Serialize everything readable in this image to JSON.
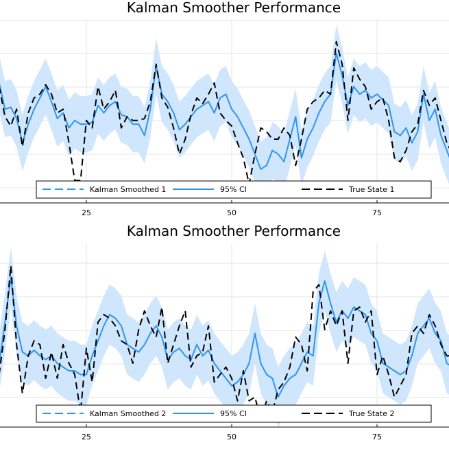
{
  "chart_data": [
    {
      "type": "line",
      "title": "Kalman Smoother Performance",
      "xlabel": "",
      "ylabel": "",
      "xlim": [
        10,
        88
      ],
      "ylim": [
        -2.2,
        2.7
      ],
      "xticks": [
        25,
        50,
        75
      ],
      "grid": true,
      "legend_placement": "bottom",
      "x": [
        10,
        11,
        12,
        13,
        14,
        15,
        16,
        17,
        18,
        19,
        20,
        21,
        22,
        23,
        24,
        25,
        26,
        27,
        28,
        29,
        30,
        31,
        32,
        33,
        34,
        35,
        36,
        37,
        38,
        39,
        40,
        41,
        42,
        43,
        44,
        45,
        46,
        47,
        48,
        49,
        50,
        51,
        52,
        53,
        54,
        55,
        56,
        57,
        58,
        59,
        60,
        61,
        62,
        63,
        64,
        65,
        66,
        67,
        68,
        69,
        70,
        71,
        72,
        73,
        74,
        75,
        76,
        77,
        78,
        79,
        80,
        81,
        82,
        83,
        84,
        85,
        86,
        87,
        88
      ],
      "series": [
        {
          "name": "Kalman Smoothed 1",
          "values": [
            1.0,
            0.3,
            0.35,
            0.05,
            -0.6,
            -0.1,
            0.3,
            0.6,
            0.9,
            0.5,
            0.05,
            0.2,
            -0.2,
            0.0,
            -0.1,
            -0.1,
            -0.05,
            0.4,
            0.2,
            0.4,
            0.5,
            0.15,
            0.1,
            -0.1,
            -0.1,
            -0.4,
            0.3,
            1.45,
            0.7,
            0.5,
            0.2,
            -0.25,
            -0.1,
            0.1,
            0.3,
            0.4,
            0.5,
            0.2,
            0.6,
            0.7,
            0.3,
            0.1,
            -0.2,
            -0.5,
            -0.9,
            -1.3,
            -1.2,
            -0.8,
            -0.9,
            -1.1,
            -0.5,
            0.1,
            -1.0,
            -0.5,
            -0.2,
            0.2,
            0.5,
            0.7,
            1.8,
            1.2,
            0.4,
            0.9,
            0.7,
            0.8,
            0.6,
            0.7,
            0.55,
            0.4,
            -0.3,
            -0.4,
            -0.2,
            -0.6,
            -0.3,
            0.7,
            0.0,
            0.3,
            -0.4,
            -0.8,
            -1.2
          ]
        },
        {
          "name": "True State 1",
          "values": [
            0.9,
            0.1,
            -0.15,
            0.3,
            -0.7,
            0.2,
            0.6,
            0.7,
            0.95,
            0.7,
            0.2,
            0.3,
            -0.6,
            -1.6,
            -1.6,
            0.0,
            -0.2,
            0.9,
            0.3,
            0.5,
            0.8,
            -0.2,
            0.1,
            0.0,
            0.0,
            0.05,
            0.5,
            1.5,
            0.6,
            0.35,
            -0.2,
            -0.9,
            -0.5,
            0.15,
            0.6,
            0.45,
            0.7,
            1.0,
            0.2,
            0.0,
            -0.15,
            -0.6,
            -1.0,
            -1.7,
            -0.9,
            -0.2,
            -0.3,
            -0.5,
            -0.5,
            -0.2,
            -0.4,
            -1.2,
            -0.5,
            0.3,
            0.5,
            0.6,
            0.8,
            0.7,
            2.1,
            1.5,
            0.0,
            1.4,
            1.1,
            0.9,
            0.3,
            0.5,
            0.6,
            0.0,
            -1.0,
            -1.1,
            -0.8,
            -0.3,
            -0.1,
            0.8,
            0.4,
            0.6,
            0.0,
            -0.6,
            -0.9
          ]
        }
      ],
      "ci_label": "95% CI",
      "ci_halfwidth": 0.75
    },
    {
      "type": "line",
      "title": "Kalman Smoother Performance",
      "xlabel": "",
      "ylabel": "",
      "xlim": [
        10,
        88
      ],
      "ylim": [
        -2.2,
        2.7
      ],
      "xticks": [
        25,
        50,
        75
      ],
      "grid": true,
      "legend_placement": "bottom",
      "x": [
        10,
        11,
        12,
        13,
        14,
        15,
        16,
        17,
        18,
        19,
        20,
        21,
        22,
        23,
        24,
        25,
        26,
        27,
        28,
        29,
        30,
        31,
        32,
        33,
        34,
        35,
        36,
        37,
        38,
        39,
        40,
        41,
        42,
        43,
        44,
        45,
        46,
        47,
        48,
        49,
        50,
        51,
        52,
        53,
        54,
        55,
        56,
        57,
        58,
        59,
        60,
        61,
        62,
        63,
        64,
        65,
        66,
        67,
        68,
        69,
        70,
        71,
        72,
        73,
        74,
        75,
        76,
        77,
        78,
        79,
        80,
        81,
        82,
        83,
        84,
        85,
        86,
        87,
        88
      ],
      "series": [
        {
          "name": "Kalman Smoothed 2",
          "values": [
            -0.5,
            0.6,
            1.8,
            0.5,
            -0.2,
            -0.3,
            -0.15,
            -0.3,
            -0.4,
            -0.3,
            -0.5,
            -0.6,
            -0.7,
            -0.7,
            -0.8,
            -0.8,
            -0.3,
            0.1,
            0.5,
            0.8,
            0.7,
            0.5,
            0.0,
            -0.1,
            -0.2,
            0.0,
            0.3,
            0.5,
            0.2,
            -0.4,
            -0.2,
            -0.1,
            -0.3,
            -0.4,
            0.0,
            -0.3,
            -0.15,
            -0.5,
            -0.7,
            -0.9,
            -1.1,
            -1.0,
            -0.8,
            -0.5,
            0.3,
            -0.5,
            -0.8,
            -0.9,
            -1.4,
            -1.1,
            -0.9,
            -0.8,
            -0.5,
            -0.2,
            -0.3,
            1.1,
            1.7,
            1.1,
            0.6,
            0.9,
            0.7,
            1.0,
            0.9,
            0.8,
            0.3,
            0.1,
            -0.5,
            -0.6,
            -0.7,
            -0.8,
            -0.7,
            -0.3,
            0.3,
            0.5,
            0.7,
            0.3,
            0.1,
            -0.5,
            -0.6
          ]
        },
        {
          "name": "True State 2",
          "values": [
            -0.8,
            0.4,
            2.1,
            0.0,
            -1.3,
            -0.3,
            0.1,
            0.0,
            -0.9,
            -0.2,
            -0.9,
            0.0,
            -0.5,
            -0.8,
            -1.8,
            -0.1,
            -1.0,
            0.6,
            0.8,
            0.7,
            0.5,
            0.1,
            0.0,
            -0.5,
            0.4,
            0.9,
            0.5,
            0.2,
            1.0,
            -0.5,
            0.0,
            0.5,
            0.9,
            -0.6,
            -0.3,
            -0.2,
            0.5,
            -1.0,
            -0.8,
            -0.6,
            -0.9,
            -1.5,
            -0.7,
            -1.5,
            -1.4,
            -2.0,
            -1.5,
            -1.8,
            -1.2,
            -1.0,
            -0.6,
            0.2,
            0.0,
            -0.7,
            1.4,
            1.6,
            0.4,
            0.9,
            0.5,
            0.9,
            -0.5,
            0.9,
            1.0,
            0.6,
            0.9,
            -0.8,
            -0.3,
            -0.8,
            -1.4,
            -1.1,
            -0.8,
            0.3,
            0.5,
            0.3,
            0.8,
            0.5,
            0.0,
            -0.3,
            -0.3
          ]
        }
      ],
      "ci_label": "95% CI",
      "ci_halfwidth": 0.8
    }
  ],
  "colors": {
    "smoothed": "#2f95f0",
    "ci_fill": "#cfe6fc",
    "true_state": "#000000",
    "grid": "#e4e4e4",
    "axis": "#000000"
  }
}
